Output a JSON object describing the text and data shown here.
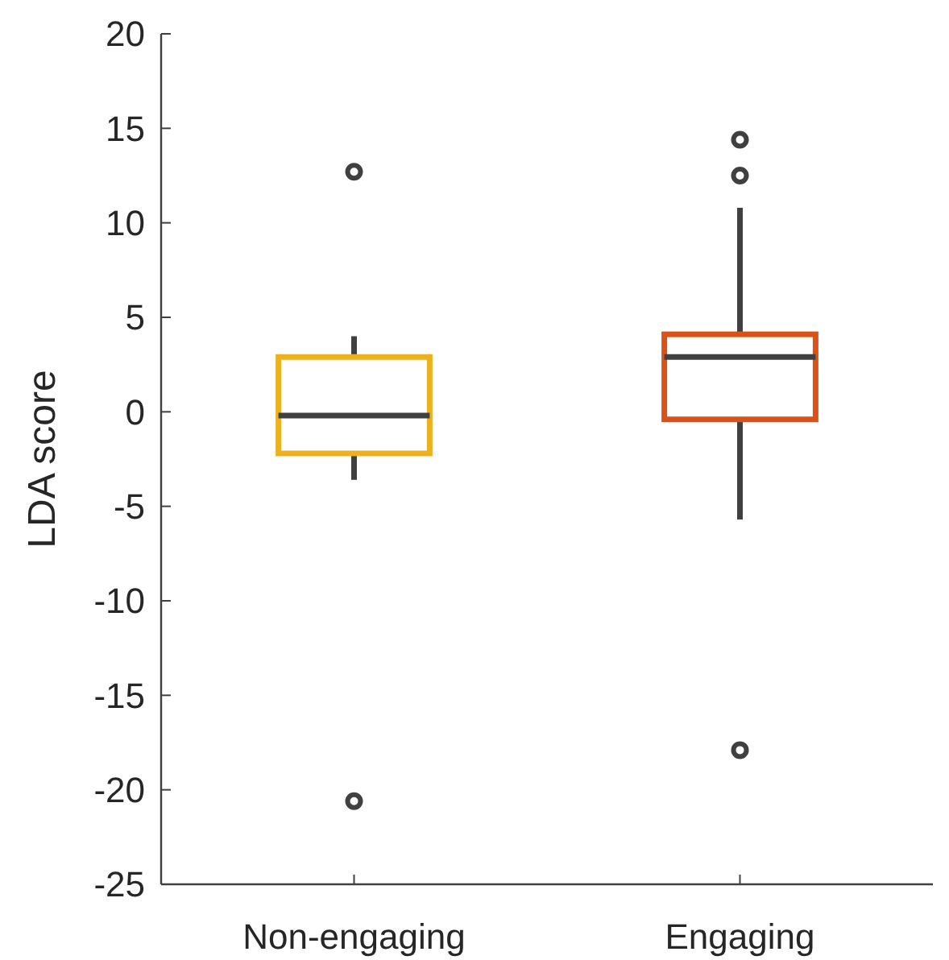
{
  "chart_data": {
    "type": "box",
    "ylabel": "LDA score",
    "categories": [
      "Non-engaging",
      "Engaging"
    ],
    "boxes": [
      {
        "low": -3.6,
        "q1": -2.2,
        "median": -0.2,
        "q3": 2.9,
        "high": 4.0,
        "outliers": [
          12.7,
          -20.6
        ]
      },
      {
        "low": -5.7,
        "q1": -0.4,
        "median": 2.9,
        "q3": 4.1,
        "high": 10.8,
        "outliers": [
          14.4,
          12.5,
          -17.9
        ]
      }
    ],
    "colors": [
      "#edb120",
      "#d95319"
    ],
    "ylim": [
      -25,
      20
    ],
    "yticks": [
      -25,
      -20,
      -15,
      -10,
      -5,
      0,
      5,
      10,
      15,
      20
    ],
    "grid": false
  }
}
